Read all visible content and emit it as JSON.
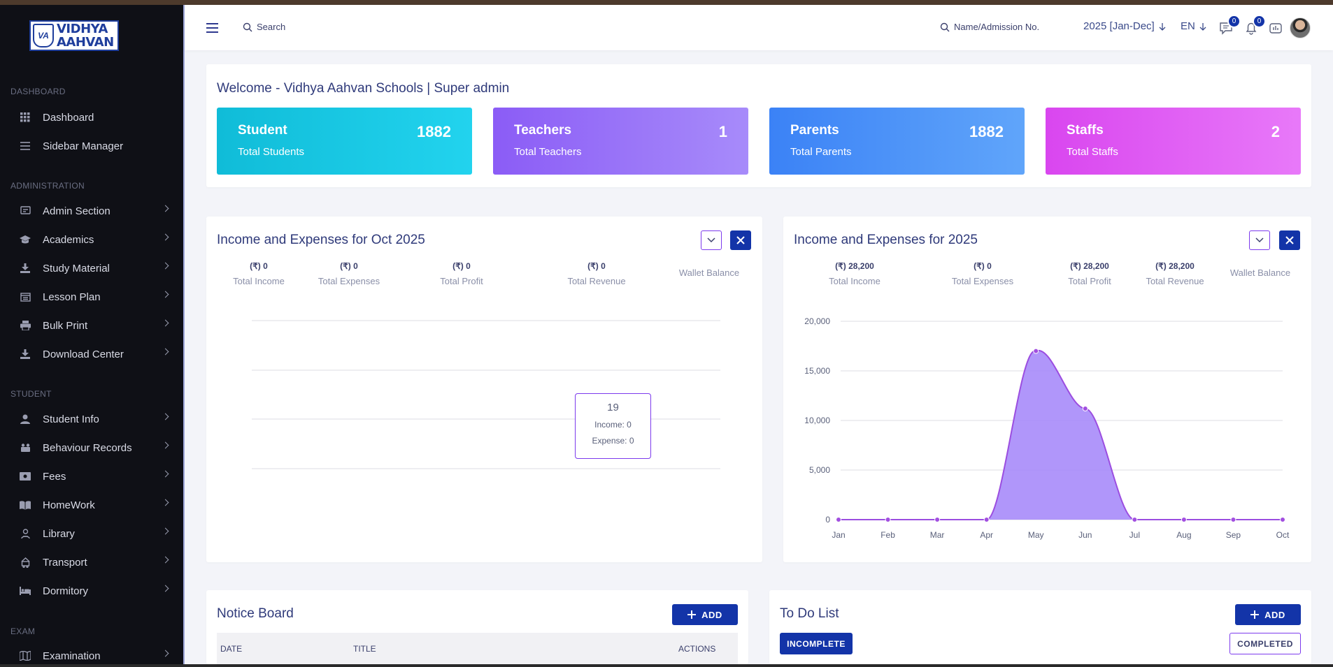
{
  "brand": {
    "logo_line1": "VIDHYA",
    "logo_line2": "AAHVAN",
    "logo_mark": "VA"
  },
  "sidebar": {
    "sections": [
      {
        "label": "DASHBOARD",
        "items": [
          {
            "label": "Dashboard",
            "icon": "grid-icon"
          },
          {
            "label": "Sidebar Manager",
            "icon": "menu-lines-icon"
          }
        ]
      },
      {
        "label": "ADMINISTRATION",
        "items": [
          {
            "label": "Admin Section",
            "icon": "admin-icon"
          },
          {
            "label": "Academics",
            "icon": "graduation-cap-icon"
          },
          {
            "label": "Study Material",
            "icon": "download-icon"
          },
          {
            "label": "Lesson Plan",
            "icon": "lesson-icon"
          },
          {
            "label": "Bulk Print",
            "icon": "printer-icon"
          },
          {
            "label": "Download Center",
            "icon": "download-icon"
          }
        ]
      },
      {
        "label": "STUDENT",
        "items": [
          {
            "label": "Student Info",
            "icon": "user-icon"
          },
          {
            "label": "Behaviour Records",
            "icon": "behaviour-icon"
          },
          {
            "label": "Fees",
            "icon": "money-icon"
          },
          {
            "label": "HomeWork",
            "icon": "book-icon"
          },
          {
            "label": "Library",
            "icon": "library-icon"
          },
          {
            "label": "Transport",
            "icon": "bus-icon"
          },
          {
            "label": "Dormitory",
            "icon": "bed-icon"
          }
        ]
      },
      {
        "label": "EXAM",
        "items": [
          {
            "label": "Examination",
            "icon": "map-icon"
          }
        ]
      }
    ]
  },
  "header": {
    "search_label": "Search",
    "student_search_label": "Name/Admission No.",
    "session": "2025 [Jan-Dec]",
    "language": "EN",
    "messages_count": "0",
    "notifications_count": "0"
  },
  "welcome": {
    "title": "Welcome - Vidhya Aahvan Schools | Super admin",
    "stats": [
      {
        "name": "Student",
        "value": "1882",
        "subtitle": "Total Students",
        "gradient": [
          "#10bcd8",
          "#22d3ee"
        ]
      },
      {
        "name": "Teachers",
        "value": "1",
        "subtitle": "Total Teachers",
        "gradient": [
          "#8b5cf6",
          "#a78bfa"
        ]
      },
      {
        "name": "Parents",
        "value": "1882",
        "subtitle": "Total Parents",
        "gradient": [
          "#3b82f6",
          "#60a5fa"
        ]
      },
      {
        "name": "Staffs",
        "value": "2",
        "subtitle": "Total Staffs",
        "gradient": [
          "#d946ef",
          "#e879f9"
        ]
      }
    ]
  },
  "monthly_card": {
    "title": "Income and Expenses for Oct 2025",
    "summary": [
      {
        "value": "(₹) 0",
        "label": "Total Income"
      },
      {
        "value": "(₹) 0",
        "label": "Total Expenses"
      },
      {
        "value": "(₹) 0",
        "label": "Total Profit"
      },
      {
        "value": "(₹) 0",
        "label": "Total Revenue"
      },
      {
        "value": "",
        "label": "Wallet Balance"
      }
    ],
    "tooltip": {
      "title": "19",
      "income": "Income: 0",
      "expense": "Expense: 0"
    }
  },
  "yearly_card": {
    "title": "Income and Expenses for 2025",
    "summary": [
      {
        "value": "(₹) 28,200",
        "label": "Total Income"
      },
      {
        "value": "(₹) 0",
        "label": "Total Expenses"
      },
      {
        "value": "(₹) 28,200",
        "label": "Total Profit"
      },
      {
        "value": "(₹) 28,200",
        "label": "Total Revenue"
      },
      {
        "value": "",
        "label": "Wallet Balance"
      }
    ]
  },
  "chart_data": [
    {
      "type": "line",
      "categories": [],
      "series": [],
      "grid": true,
      "ylim": [
        0,
        20000
      ]
    },
    {
      "type": "area",
      "categories": [
        "Jan",
        "Feb",
        "Mar",
        "Apr",
        "May",
        "Jun",
        "Jul",
        "Aug",
        "Sep",
        "Oct"
      ],
      "series": [
        {
          "values": [
            0,
            0,
            0,
            0,
            17000,
            11200,
            0,
            0,
            0,
            0
          ],
          "color": "#a78bfa"
        }
      ],
      "yticks": [
        "0",
        "5,000",
        "10,000",
        "15,000",
        "20,000"
      ],
      "ylim": [
        0,
        20000
      ],
      "grid": true
    }
  ],
  "notice_board": {
    "title": "Notice Board",
    "add_label": "ADD",
    "columns": [
      "DATE",
      "TITLE",
      "ACTIONS"
    ]
  },
  "todo": {
    "title": "To Do List",
    "add_label": "ADD",
    "tab_incomplete": "INCOMPLETE",
    "tab_completed": "COMPLETED"
  }
}
